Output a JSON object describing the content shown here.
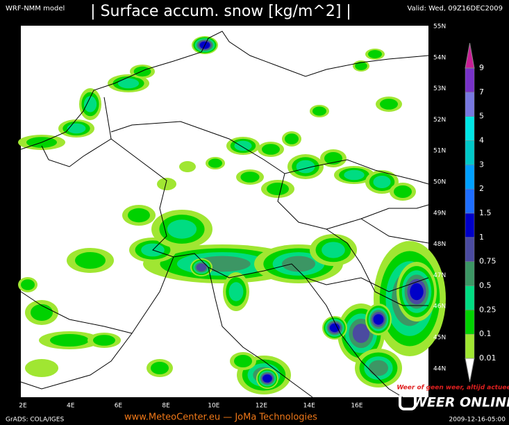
{
  "header": {
    "model": "WRF-NMM model",
    "title": "| Surface accum. snow [kg/m^2] |",
    "valid": "Valid: Wed, 09Z16DEC2009"
  },
  "map": {
    "lat_labels": [
      "55N",
      "54N",
      "53N",
      "52N",
      "51N",
      "50N",
      "49N",
      "48N",
      "47N",
      "46N",
      "45N",
      "44N"
    ],
    "lon_labels": [
      "2E",
      "4E",
      "6E",
      "8E",
      "10E",
      "12E",
      "14E",
      "16E"
    ]
  },
  "legend": {
    "labels": [
      "9",
      "7",
      "5",
      "4",
      "3",
      "2",
      "1.5",
      "1",
      "0.75",
      "0.5",
      "0.25",
      "0.1",
      "0.01"
    ]
  },
  "footer": {
    "grads": "GrADS: COLA/IGES",
    "site": "www.MeteoCenter.eu  —  JoMa Technologies",
    "date": "2009-12-16-05:00"
  },
  "logo": {
    "slogan": "Weer of geen weer, altijd actueel",
    "name": "WEER ONLINE"
  }
}
